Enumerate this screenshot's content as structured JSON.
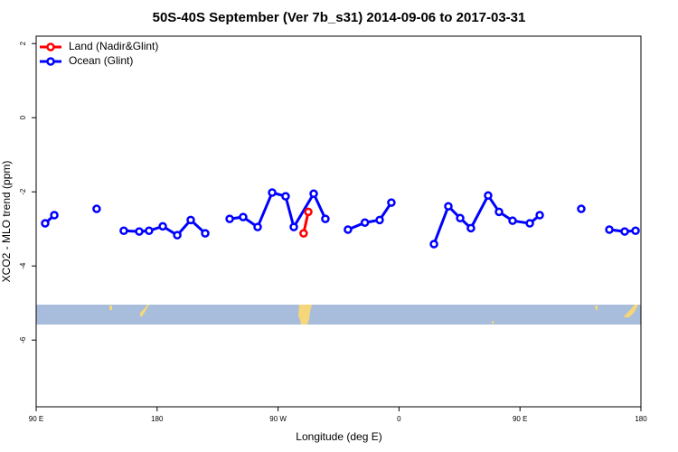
{
  "chart_data": {
    "type": "line",
    "title": "50S-40S September (Ver 7b_s31)   2014-09-06 to 2017-03-31",
    "x_label": "Longitude (deg E)",
    "y_label": "XCO2 - MLO trend (ppm)",
    "xlim": [
      90,
      540
    ],
    "ylim": [
      -7.8,
      2.2
    ],
    "xticks": [
      {
        "value": 90,
        "label": "90 E"
      },
      {
        "value": 180,
        "label": "180"
      },
      {
        "value": 270,
        "label": "90 W"
      },
      {
        "value": 360,
        "label": "0"
      },
      {
        "value": 450,
        "label": "90 E"
      },
      {
        "value": 540,
        "label": "180"
      }
    ],
    "yticks": [
      -6,
      -4,
      -2,
      0,
      2
    ],
    "legend": "top-left",
    "series": [
      {
        "name": "Land (Nadir&Glint)",
        "color": "#ff0000",
        "x": [
          289,
          292.5
        ],
        "values": [
          -3.12,
          -2.54
        ]
      },
      {
        "name": "Ocean (Glint)",
        "color": "#0000ff",
        "x": [
          96.7,
          103.5,
          120,
          135,
          145,
          155.2,
          166.7,
          174,
          184.2,
          195,
          205,
          215.8,
          225,
          234,
          244,
          254.8,
          265.6,
          275.6,
          281.7,
          296.5,
          305.2,
          314,
          322,
          334.6,
          345.6,
          354.3,
          370,
          386,
          396.7,
          405.5,
          413.5,
          426.3,
          434.4,
          444.5,
          457.3,
          464.7,
          480,
          495.6,
          505,
          516.5,
          527.9,
          536
        ],
        "values": [
          -2.85,
          -2.63,
          null,
          -2.46,
          null,
          -3.05,
          -3.07,
          -3.05,
          -2.93,
          -3.17,
          -2.76,
          -3.12,
          null,
          -2.73,
          -2.68,
          -2.95,
          -2.02,
          -2.12,
          -2.95,
          -2.05,
          -2.73,
          null,
          -3.02,
          -2.83,
          -2.76,
          -2.29,
          null,
          -3.41,
          -2.39,
          -2.71,
          -2.98,
          -2.1,
          -2.54,
          -2.78,
          -2.85,
          -2.63,
          null,
          -2.46,
          null,
          -3.02,
          -3.07,
          -3.05
        ]
      }
    ]
  }
}
